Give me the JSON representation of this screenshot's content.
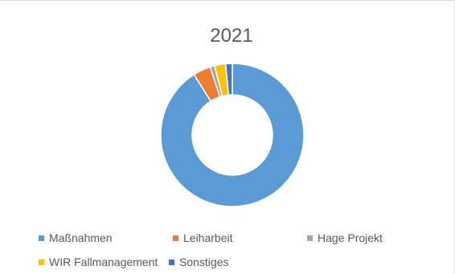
{
  "chart_data": {
    "type": "pie",
    "variant": "donut",
    "title": "2021",
    "categories": [
      "Maßnahmen",
      "Leiharbeit",
      "Hage Projekt",
      "WIR Fallmanagement",
      "Sonstiges"
    ],
    "values": [
      91.0,
      4.0,
      1.0,
      2.5,
      1.5
    ],
    "value_unit": "percent (estimated)",
    "colors": [
      "#5b9bd5",
      "#ed7d31",
      "#a5a5a5",
      "#ffc000",
      "#4472c4"
    ],
    "legend_position": "bottom"
  }
}
